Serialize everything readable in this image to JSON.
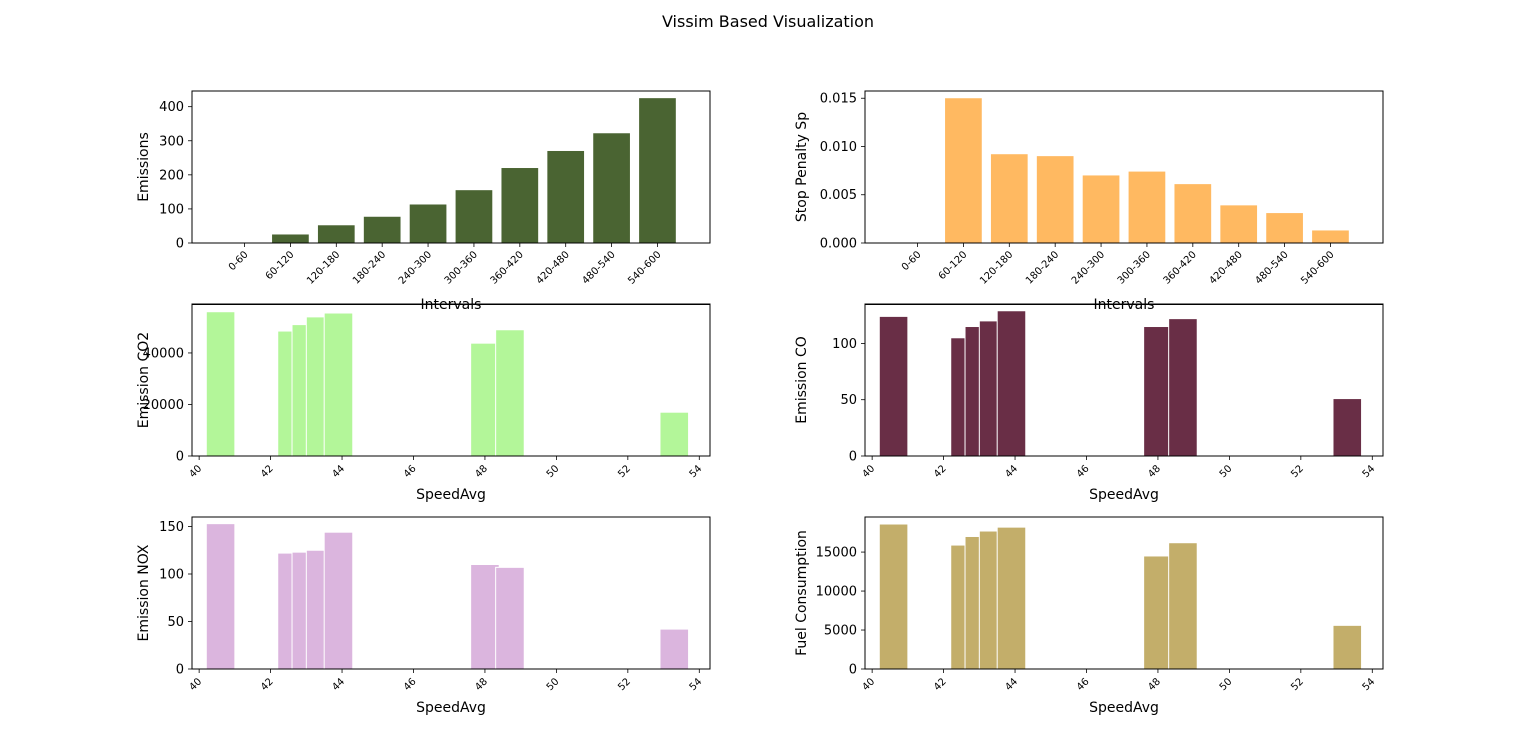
{
  "figure": {
    "title": "Vissim Based Visualization"
  },
  "chart_data": [
    {
      "type": "bar",
      "xlabel": "Intervals",
      "ylabel": "Emissions",
      "color": "#4a6432",
      "categories": [
        "0-60",
        "60-120",
        "120-180",
        "180-240",
        "240-300",
        "300-360",
        "360-420",
        "420-480",
        "480-540",
        "540-600"
      ],
      "values": [
        0,
        25,
        52,
        77,
        113,
        155,
        220,
        270,
        322,
        425
      ],
      "ylim": [
        0,
        446
      ],
      "yticks": [
        0,
        100,
        200,
        300,
        400
      ],
      "ytick_labels": [
        "0",
        "100",
        "200",
        "300",
        "400"
      ]
    },
    {
      "type": "bar",
      "xlabel": "Intervals",
      "ylabel": "Stop Penalty Sp",
      "color": "#ffb961",
      "categories": [
        "0-60",
        "60-120",
        "120-180",
        "180-240",
        "240-300",
        "300-360",
        "360-420",
        "420-480",
        "480-540",
        "540-600"
      ],
      "values": [
        0,
        0.015,
        0.0092,
        0.009,
        0.007,
        0.0074,
        0.0061,
        0.0039,
        0.0031,
        0.0013
      ],
      "ylim": [
        0,
        0.01575
      ],
      "yticks": [
        0,
        0.005,
        0.01,
        0.015
      ],
      "ytick_labels": [
        "0.000",
        "0.005",
        "0.010",
        "0.015"
      ]
    },
    {
      "type": "bar",
      "xlabel": "SpeedAvg",
      "ylabel": "Emission CO2",
      "color": "#b3f699",
      "bar_width": 0.8,
      "x": [
        40.6,
        42.6,
        43.0,
        43.4,
        43.9,
        48.0,
        48.7,
        53.3
      ],
      "values": [
        56000,
        48500,
        51000,
        54000,
        55500,
        43800,
        49000,
        17000
      ],
      "xlim": [
        39.8,
        54.3
      ],
      "ylim": [
        0,
        59000
      ],
      "xticks": [
        40,
        42,
        44,
        46,
        48,
        50,
        52,
        54
      ],
      "yticks": [
        0,
        20000,
        40000
      ],
      "ytick_labels": [
        "0",
        "20000",
        "40000"
      ]
    },
    {
      "type": "bar",
      "xlabel": "SpeedAvg",
      "ylabel": "Emission CO",
      "color": "#692e46",
      "bar_width": 0.8,
      "x": [
        40.6,
        42.6,
        43.0,
        43.4,
        43.9,
        48.0,
        48.7,
        53.3
      ],
      "values": [
        124,
        105,
        115,
        120,
        129,
        115,
        122,
        51
      ],
      "xlim": [
        39.8,
        54.3
      ],
      "ylim": [
        0,
        135
      ],
      "xticks": [
        40,
        42,
        44,
        46,
        48,
        50,
        52,
        54
      ],
      "yticks": [
        0,
        50,
        100
      ],
      "ytick_labels": [
        "0",
        "50",
        "100"
      ]
    },
    {
      "type": "bar",
      "xlabel": "SpeedAvg",
      "ylabel": "Emission NOX",
      "color": "#dbb5de",
      "bar_width": 0.8,
      "x": [
        40.6,
        42.6,
        43.0,
        43.4,
        43.9,
        48.0,
        48.7,
        53.3
      ],
      "values": [
        153,
        122,
        123,
        125,
        144,
        110,
        107,
        42
      ],
      "xlim": [
        39.8,
        54.3
      ],
      "ylim": [
        0,
        160
      ],
      "xticks": [
        40,
        42,
        44,
        46,
        48,
        50,
        52,
        54
      ],
      "yticks": [
        0,
        50,
        100,
        150
      ],
      "ytick_labels": [
        "0",
        "50",
        "100",
        "150"
      ]
    },
    {
      "type": "bar",
      "xlabel": "SpeedAvg",
      "ylabel": "Fuel Consumption",
      "color": "#c3ae6a",
      "bar_width": 0.8,
      "x": [
        40.6,
        42.6,
        43.0,
        43.4,
        43.9,
        48.0,
        48.7,
        53.3
      ],
      "values": [
        18600,
        15900,
        17000,
        17700,
        18200,
        14500,
        16200,
        5600
      ],
      "xlim": [
        39.8,
        54.3
      ],
      "ylim": [
        0,
        19500
      ],
      "xticks": [
        40,
        42,
        44,
        46,
        48,
        50,
        52,
        54
      ],
      "yticks": [
        0,
        5000,
        10000,
        15000
      ],
      "ytick_labels": [
        "0",
        "5000",
        "10000",
        "15000"
      ]
    }
  ]
}
